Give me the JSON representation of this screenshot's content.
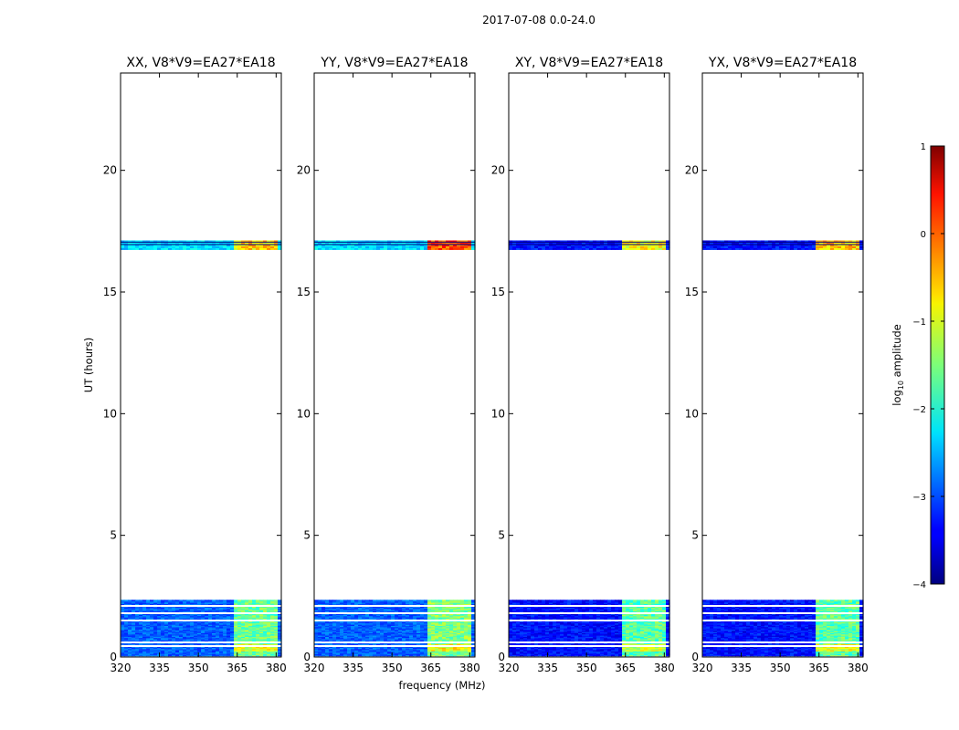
{
  "figure_title": "2017-07-08 0.0-24.0",
  "chart_data": {
    "type": "heatmap",
    "x_label": "frequency (MHz)",
    "y_label": "UT (hours)",
    "xlim": [
      320,
      382
    ],
    "ylim": [
      0,
      24
    ],
    "x_ticks": [
      320,
      335,
      350,
      365,
      380
    ],
    "y_ticks": [
      0,
      5,
      10,
      15,
      20
    ],
    "colorbar": {
      "label": "log10 amplitude",
      "label_base": "log",
      "label_sub": "10",
      "label_rest": " amplitude",
      "range": [
        -4,
        1
      ],
      "ticks": [
        -4,
        -3,
        -2,
        -1,
        0,
        1
      ],
      "tick_labels": [
        "−4",
        "−3",
        "−2",
        "−1",
        "0",
        "1"
      ],
      "colormap": "jet"
    },
    "observation_blocks": [
      {
        "name": "late",
        "ut_start": 16.75,
        "ut_end": 17.12
      },
      {
        "name": "early",
        "ut_start": 0.05,
        "ut_end": 2.35
      }
    ],
    "flagged_ut_lines": [
      2.1,
      1.8,
      1.5,
      0.6,
      0.45
    ],
    "rfi_band_mhz": [
      363,
      380
    ],
    "panels": [
      {
        "title": "XX, V8*V9=EA27*EA18",
        "background_level": -2.9,
        "late_block_level": -2.3,
        "rfi_late_level": -0.7,
        "rfi_early_level": -1.6,
        "rfi_hot_level": -1.0
      },
      {
        "title": "YY, V8*V9=EA27*EA18",
        "background_level": -2.9,
        "late_block_level": -2.3,
        "rfi_late_level": 0.0,
        "rfi_early_level": -1.5,
        "rfi_hot_level": -0.9
      },
      {
        "title": "XY, V8*V9=EA27*EA18",
        "background_level": -3.3,
        "late_block_level": -3.3,
        "rfi_late_level": -0.9,
        "rfi_early_level": -1.7,
        "rfi_hot_level": -1.1
      },
      {
        "title": "YX, V8*V9=EA27*EA18",
        "background_level": -3.3,
        "late_block_level": -3.3,
        "rfi_late_level": -0.6,
        "rfi_early_level": -1.7,
        "rfi_hot_level": -1.0
      }
    ]
  }
}
